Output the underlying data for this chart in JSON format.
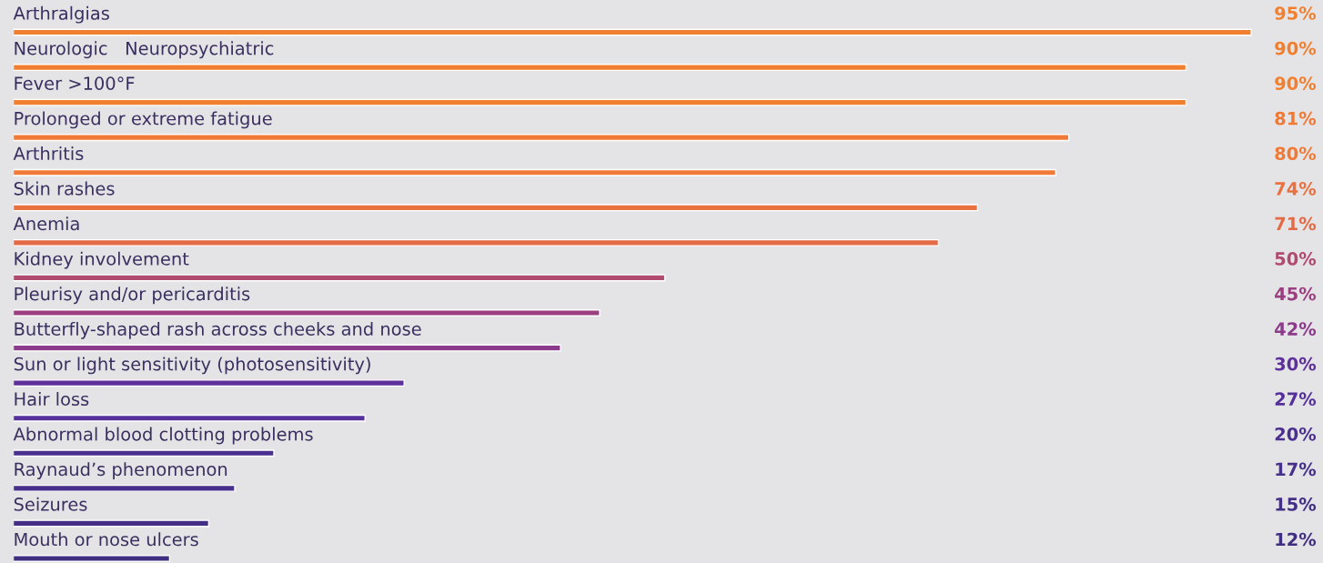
{
  "chart_data": {
    "type": "bar",
    "orientation": "horizontal",
    "categories": [
      "Arthralgias",
      "Neurologic   Neuropsychiatric",
      "Fever >100°F",
      "Prolonged or extreme fatigue",
      "Arthritis",
      "Skin rashes",
      "Anemia",
      "Kidney involvement",
      "Pleurisy and/or pericarditis",
      "Butterfly-shaped rash across cheeks and nose",
      "Sun or light sensitivity (photosensitivity)",
      "Hair loss",
      "Abnormal blood clotting problems",
      "Raynaud’s phenomenon",
      "Seizures",
      "Mouth or nose ulcers"
    ],
    "values": [
      95,
      90,
      90,
      81,
      80,
      74,
      71,
      50,
      45,
      42,
      30,
      27,
      20,
      17,
      15,
      12
    ],
    "colors": [
      "#f08030",
      "#f08030",
      "#f08030",
      "#f07a35",
      "#f07a35",
      "#e9703f",
      "#e46a45",
      "#b04a6e",
      "#9a3e80",
      "#8c3a8c",
      "#5e309a",
      "#55309a",
      "#4a2f8e",
      "#46308a",
      "#432f85",
      "#402e80"
    ],
    "xlim": [
      0,
      100
    ],
    "data_labels": true,
    "value_labels": [
      "95%",
      "90%",
      "90%",
      "81%",
      "80%",
      "74%",
      "71%",
      "50%",
      "45%",
      "42%",
      "30%",
      "27%",
      "20%",
      "17%",
      "15%",
      "12%"
    ]
  }
}
